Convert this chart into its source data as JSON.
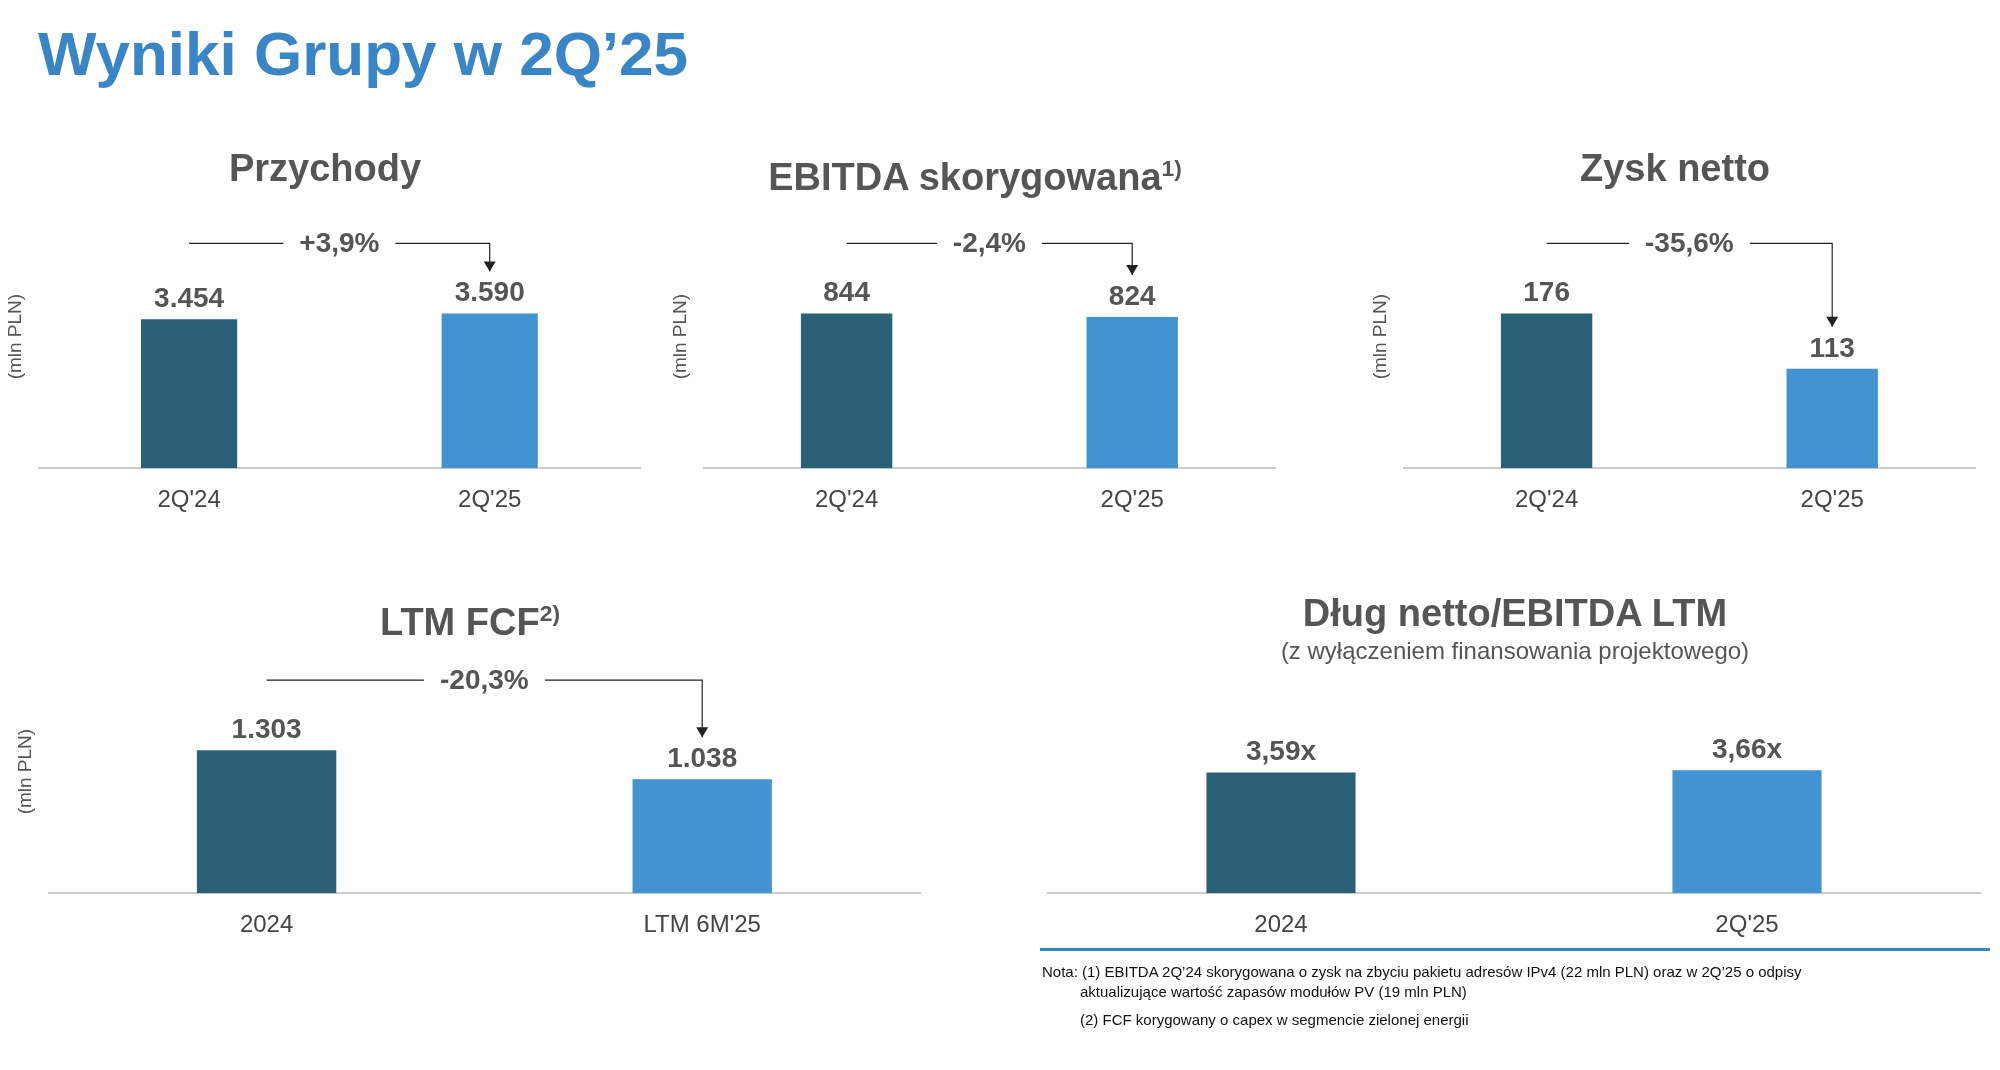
{
  "chart_data": [
    {
      "type": "other",
      "title": "Wyniki Grupy w 2Q’25",
      "annotations": [
        "Nota: (1) EBITDA 2Q’24 skorygowana o zysk na zbyciu pakietu adresów IPv4 (22 mln PLN) oraz w 2Q’25 o odpisy aktualizujące wartość zapasów modułów PV (19 mln PLN)",
        "(2) FCF korygowany o capex w segmencie zielonej energii"
      ]
    },
    {
      "type": "bar",
      "title": "Przychody",
      "ylabel": "(mln PLN)",
      "categories": [
        "2Q'24",
        "2Q'25"
      ],
      "values": [
        3454,
        3590
      ],
      "colors": [
        "#2a6177",
        "#4393d0"
      ],
      "value_labels": [
        "3.454",
        "3.590"
      ],
      "data_labels": true,
      "tick_labels": "x",
      "annotations": [
        "+3,9%"
      ]
    },
    {
      "type": "bar",
      "title": "EBITDA skorygowana$^{1)}$",
      "ylabel": "(mln PLN)",
      "categories": [
        "2Q'24",
        "2Q'25"
      ],
      "values": [
        844,
        824
      ],
      "colors": [
        "#2a6177",
        "#4393d0"
      ],
      "data_labels": true,
      "tick_labels": "x",
      "annotations": [
        "-2,4%"
      ]
    },
    {
      "type": "bar",
      "title": "Zysk netto",
      "ylabel": "(mln PLN)",
      "categories": [
        "2Q'24",
        "2Q'25"
      ],
      "values": [
        176,
        113
      ],
      "colors": [
        "#2a6177",
        "#4393d0"
      ],
      "data_labels": true,
      "tick_labels": "x",
      "annotations": [
        "-35,6%"
      ]
    },
    {
      "type": "bar",
      "title": "LTM FCF$^{2)}$",
      "ylabel": "(mln PLN)",
      "categories": [
        "2024",
        "LTM 6M'25"
      ],
      "values": [
        1303,
        1038
      ],
      "colors": [
        "#2a6177",
        "#4393d0"
      ],
      "value_labels": [
        "1.303",
        "1.038"
      ],
      "data_labels": true,
      "tick_labels": "x",
      "annotations": [
        "-20,3%"
      ]
    },
    {
      "type": "bar",
      "title": "Dług netto/EBITDA LTM",
      "subtitle": "(z wyłączeniem finansowania projektowego)",
      "categories": [
        "2024",
        "2Q'25"
      ],
      "values": [
        3.59,
        3.66
      ],
      "colors": [
        "#2a6177",
        "#4393d0"
      ],
      "value_labels": [
        "3,59x",
        "3,66x"
      ],
      "data_labels": true,
      "tick_labels": "x"
    }
  ]
}
